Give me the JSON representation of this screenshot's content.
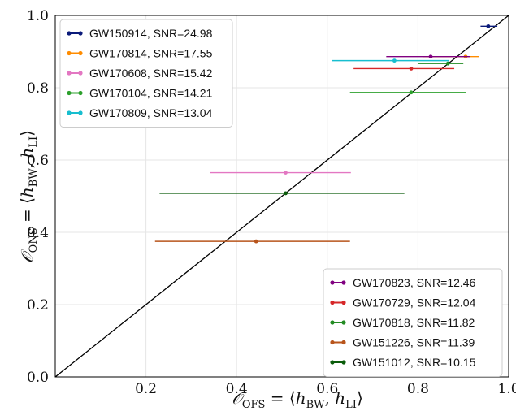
{
  "chart_data": {
    "type": "scatter",
    "title": "",
    "xlabel": "𝒪OFS = ⟨hBW, hLI⟩",
    "ylabel": "𝒪ONS = ⟨hBW, hLI⟩",
    "xlim": [
      0.0,
      1.0
    ],
    "ylim": [
      0.0,
      1.0
    ],
    "x_ticks": [
      "0.2",
      "0.4",
      "0.6",
      "0.8",
      "1.0"
    ],
    "y_ticks": [
      "0.0",
      "0.2",
      "0.4",
      "0.6",
      "0.8",
      "1.0"
    ],
    "grid": true,
    "diagonal_line": true,
    "series": [
      {
        "name": "GW150914, SNR=24.98",
        "color": "#0b1b7a",
        "x": 0.955,
        "y": 0.97,
        "xerr": [
          0.938,
          0.975
        ],
        "legend": "upper-left"
      },
      {
        "name": "GW170814, SNR=17.55",
        "color": "#ff8c00",
        "x": 0.905,
        "y": 0.886,
        "xerr": [
          0.81,
          0.935
        ],
        "legend": "upper-left"
      },
      {
        "name": "GW170608, SNR=15.42",
        "color": "#e377c2",
        "x": 0.508,
        "y": 0.565,
        "xerr": [
          0.342,
          0.652
        ],
        "legend": "upper-left"
      },
      {
        "name": "GW170104, SNR=14.21",
        "color": "#2ca02c",
        "x": 0.785,
        "y": 0.787,
        "xerr": [
          0.65,
          0.905
        ],
        "legend": "upper-left"
      },
      {
        "name": "GW170809, SNR=13.04",
        "color": "#17becf",
        "x": 0.748,
        "y": 0.875,
        "xerr": [
          0.61,
          0.868
        ],
        "legend": "upper-left"
      },
      {
        "name": "GW170823, SNR=12.46",
        "color": "#800080",
        "x": 0.828,
        "y": 0.886,
        "xerr": [
          0.73,
          0.915
        ],
        "legend": "lower-right"
      },
      {
        "name": "GW170729, SNR=12.04",
        "color": "#d62728",
        "x": 0.785,
        "y": 0.853,
        "xerr": [
          0.658,
          0.88
        ],
        "legend": "lower-right"
      },
      {
        "name": "GW170818, SNR=11.82",
        "color": "#228b22",
        "x": 0.866,
        "y": 0.867,
        "xerr": [
          0.8,
          0.9
        ],
        "legend": "lower-right"
      },
      {
        "name": "GW151226, SNR=11.39",
        "color": "#b8541b",
        "x": 0.443,
        "y": 0.375,
        "xerr": [
          0.22,
          0.65
        ],
        "legend": "lower-right"
      },
      {
        "name": "GW151012, SNR=10.15",
        "color": "#0a5c0a",
        "x": 0.508,
        "y": 0.508,
        "xerr": [
          0.23,
          0.77
        ],
        "legend": "lower-right"
      }
    ]
  }
}
